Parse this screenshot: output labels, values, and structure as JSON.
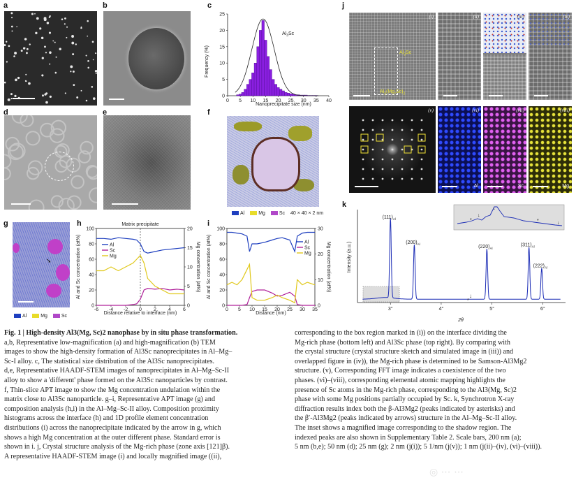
{
  "labels": {
    "a": "a",
    "b": "b",
    "c": "c",
    "d": "d",
    "e": "e",
    "f": "f",
    "g": "g",
    "h": "h",
    "i": "i",
    "j": "j",
    "k": "k"
  },
  "panel_c": {
    "ylabel": "Frequency (%)",
    "xlabel": "Nanoprecipitate size (nm)",
    "annotation_main": "Al",
    "annotation_sub": "3",
    "annotation_tail": "Sc",
    "xticks": [
      "0",
      "5",
      "10",
      "15",
      "20",
      "25",
      "30",
      "35",
      "40"
    ],
    "yticks": [
      "0",
      "5",
      "10",
      "15",
      "20",
      "25"
    ]
  },
  "panel_f": {
    "legend": [
      {
        "label": "Al",
        "color": "#1e3fbf"
      },
      {
        "label": "Mg",
        "color": "#e8dc2a"
      },
      {
        "label": "Sc",
        "color": "#b048c8"
      }
    ],
    "box": "40 × 40 × 2 nm"
  },
  "panel_g": {
    "legend": [
      {
        "label": "Al",
        "color": "#1e3fbf"
      },
      {
        "label": "Mg",
        "color": "#e8dc2a"
      },
      {
        "label": "Sc",
        "color": "#b048c8"
      }
    ]
  },
  "panel_h": {
    "title": "Matrix precipitate",
    "ylabel_left": "Al and Sc concentration (at%)",
    "ylabel_right": "Mg concentration (at%)",
    "xlabel": "Distance relative to interface (nm)",
    "legend": [
      "Al",
      "Sc",
      "Mg"
    ],
    "xticks": [
      "-6",
      "-4",
      "-2",
      "0",
      "2",
      "4",
      "6"
    ],
    "yticks_left": [
      "0",
      "20",
      "40",
      "60",
      "80",
      "100"
    ],
    "yticks_right": [
      "0",
      "5",
      "10",
      "15",
      "20"
    ]
  },
  "panel_i": {
    "ylabel_left": "Al and Sc concentration (at%)",
    "ylabel_right": "Mg concentration (at%)",
    "xlabel": "Distance (nm)",
    "legend": [
      "Al",
      "Sc",
      "Mg"
    ],
    "xticks": [
      "0",
      "5",
      "10",
      "15",
      "20",
      "25",
      "30",
      "35"
    ],
    "yticks_left": [
      "0",
      "20",
      "40",
      "60",
      "80",
      "100"
    ],
    "yticks_right": [
      "0",
      "10",
      "20",
      "30"
    ]
  },
  "panel_j": {
    "roman": [
      "(i)",
      "(ii)",
      "(iii)",
      "(iv)",
      "(v)",
      "(vi)",
      "(vii)",
      "(viii)"
    ],
    "label_al3sc": "Al",
    "label_al3sc_sub": "3",
    "label_al3sc_tail": "Sc",
    "label_mg": "Al",
    "label_mg_sub": "3",
    "label_mg_tail": "(Mg,Sc)",
    "label_mg_sub2": "2",
    "map_labels": [
      "Al",
      "Sc",
      "Mg"
    ]
  },
  "panel_k": {
    "ylabel": "Intensity (a.u.)",
    "xlabel": "2θ",
    "xticks": [
      "3°",
      "4°",
      "5°",
      "6°"
    ],
    "peaks": [
      {
        "label": "(111)",
        "sub": "Al"
      },
      {
        "label": "(200)",
        "sub": "Al"
      },
      {
        "label": "(220)",
        "sub": "Al"
      },
      {
        "label": "(311)",
        "sub": "Al"
      },
      {
        "label": "(222)",
        "sub": "Al"
      }
    ]
  },
  "caption": {
    "title": "Fig. 1 | High-density Al3(Mg, Sc)2 nanophase by in situ phase transformation.",
    "left": [
      "a,b, Representative low-magnification (a) and high-magnification (b) TEM",
      "images to show the high-density formation of Al3Sc nanoprecipitates in Al–Mg–",
      "Sc-I alloy. c, The statistical size distribution of the Al3Sc nanoprecipitates.",
      "d,e, Representative HAADF-STEM images of nanoprecipitates in Al–Mg–Sc-II",
      "alloy to show a 'different' phase formed on the Al3Sc nanoparticles by contrast.",
      "f, Thin-slice APT image to show the Mg concentration undulation within the",
      "matrix close to Al3Sc nanoparticle. g–i, Representative APT image (g) and",
      "composition analysis (h,i) in the Al–Mg–Sc-II alloy. Composition proximity",
      "histograms across the interface (h) and 1D profile element concentration",
      "distributions (i) across the nanoprecipitate indicated by the arrow in g, which",
      "shows a high Mg concentration at the outer different phase. Standard error is",
      "shown in i. j, Crystal structure analysis of the Mg-rich phase (zone axis [121]β).",
      "A representative HAADF-STEM image (i) and locally magnified image ((ii),"
    ],
    "right": [
      "corresponding to the box region marked in (i)) on the interface dividing the",
      "Mg-rich phase (bottom left) and Al3Sc phase (top right). By comparing with",
      "the crystal structure (crystal structure sketch and simulated image in (iii)) and",
      "overlapped figure in (iv)), the Mg-rich phase is determined to be Samson-Al3Mg2",
      "structure. (v), Corresponding FFT image indicates a coexistence of the two",
      "phases. (vi)–(viii), corresponding elemental atomic mapping highlights the",
      "presence of Sc atoms in the Mg-rich phase, corresponding to the Al3(Mg, Sc)2",
      "phase with some Mg positions partially occupied by Sc. k, Synchrotron X-ray",
      "diffraction results index both the β-Al3Mg2 (peaks indicated by asterisks) and",
      "the β′-Al3Mg2 (peaks indicated by arrows) structure in the Al–Mg–Sc-II alloy.",
      "The inset shows a magnified image corresponding to the shadow region. The",
      "indexed peaks are also shown in Supplementary Table 2. Scale bars, 200 nm (a);",
      "5 nm (b,e); 50 nm (d); 25 nm (g); 2 nm (j(i)); 5 1/nm (j(v)); 1 nm (j(ii)–(iv), (vi)–(viii))."
    ]
  },
  "chart_data": [
    {
      "panel": "c",
      "type": "bar",
      "xlabel": "Nanoprecipitate size (nm)",
      "ylabel": "Frequency (%)",
      "xlim": [
        0,
        40
      ],
      "ylim": [
        0,
        25
      ],
      "bin_centers": [
        4,
        5,
        6,
        7,
        8,
        9,
        10,
        11,
        12,
        13,
        14,
        15,
        16,
        17,
        18,
        19,
        20,
        21,
        22,
        23,
        24,
        25,
        26,
        27,
        28,
        29,
        30,
        31,
        32,
        33,
        34,
        35
      ],
      "values": [
        0.3,
        0.5,
        1,
        2,
        3.5,
        5,
        7,
        10,
        15,
        20,
        23,
        17,
        12,
        8,
        5,
        3.5,
        2.5,
        2,
        1.5,
        1,
        0.8,
        0.6,
        0.5,
        0.3,
        0.3,
        0.2,
        0.2,
        0.2,
        0.1,
        0.1,
        0.1,
        0.1
      ],
      "fit": "normal"
    },
    {
      "panel": "h",
      "type": "line",
      "xlabel": "Distance relative to interface (nm)",
      "xlim": [
        -6,
        6
      ],
      "series": [
        {
          "name": "Al",
          "axis": "left",
          "x": [
            -6,
            -5,
            -4,
            -3,
            -2,
            -1,
            -0.5,
            0,
            0.5,
            1,
            2,
            3,
            4,
            5,
            6
          ],
          "values": [
            87,
            87,
            86,
            88,
            87,
            86,
            85,
            80,
            70,
            68,
            70,
            72,
            73,
            74,
            75
          ]
        },
        {
          "name": "Sc",
          "axis": "left",
          "x": [
            -6,
            -5,
            -4,
            -3,
            -2,
            -1,
            -0.5,
            0,
            0.5,
            1,
            2,
            3,
            4,
            5,
            6
          ],
          "values": [
            0,
            0,
            0,
            0,
            0,
            1,
            2,
            8,
            20,
            22,
            21,
            22,
            20,
            21,
            20
          ]
        },
        {
          "name": "Mg",
          "axis": "right",
          "x": [
            -6,
            -5,
            -4,
            -3,
            -2,
            -1,
            -0.5,
            0,
            0.5,
            1,
            2,
            3,
            4,
            5,
            6
          ],
          "values": [
            9,
            9,
            10,
            9,
            10,
            11,
            12,
            13,
            11,
            7,
            5,
            4,
            3,
            3,
            3
          ]
        }
      ],
      "ylim_left": [
        0,
        100
      ],
      "ylim_right": [
        0,
        20
      ]
    },
    {
      "panel": "i",
      "type": "line",
      "xlabel": "Distance (nm)",
      "xlim": [
        0,
        35
      ],
      "series": [
        {
          "name": "Al",
          "axis": "left",
          "x": [
            0,
            2,
            4,
            6,
            8,
            9,
            10,
            12,
            15,
            18,
            20,
            22,
            25,
            27,
            28,
            30,
            32,
            35
          ],
          "values": [
            95,
            95,
            94,
            93,
            90,
            70,
            80,
            80,
            82,
            85,
            87,
            88,
            85,
            70,
            90,
            94,
            95,
            95
          ]
        },
        {
          "name": "Sc",
          "axis": "left",
          "x": [
            0,
            2,
            4,
            6,
            8,
            9,
            10,
            12,
            15,
            18,
            20,
            22,
            25,
            27,
            28,
            30,
            32,
            35
          ],
          "values": [
            0,
            0,
            0,
            0,
            1,
            10,
            18,
            20,
            20,
            16,
            12,
            13,
            17,
            12,
            1,
            0,
            0,
            0
          ]
        },
        {
          "name": "Mg",
          "axis": "right",
          "x": [
            0,
            2,
            4,
            6,
            8,
            9,
            10,
            12,
            15,
            18,
            20,
            22,
            25,
            27,
            28,
            30,
            32,
            35
          ],
          "values": [
            8,
            9,
            8,
            10,
            14,
            16,
            3,
            2,
            2,
            3,
            4,
            3,
            2,
            1,
            10,
            8,
            9,
            8
          ]
        }
      ],
      "ylim_left": [
        0,
        100
      ],
      "ylim_right": [
        0,
        30
      ]
    }
  ]
}
